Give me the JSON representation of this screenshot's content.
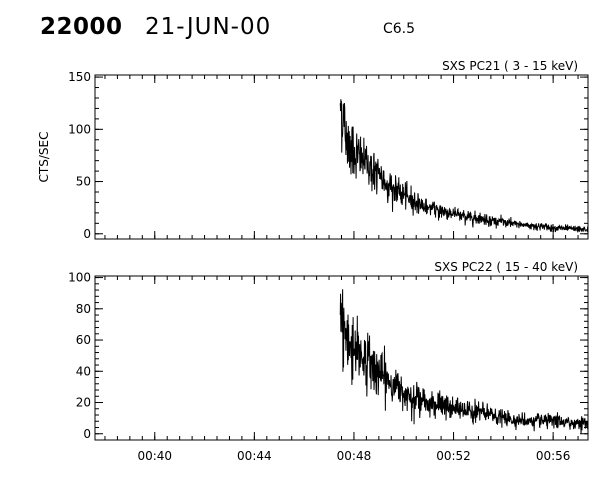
{
  "header": {
    "event_id": "22000",
    "date": "21-JUN-00",
    "flare_class": "C6.5"
  },
  "chart_data": [
    {
      "type": "line",
      "title": "SXS PC21  (  3 - 15 keV)",
      "ylabel": "CTS/SEC",
      "xlabel": "",
      "x_unit": "UT time (minutes after 00:00)",
      "xlim": [
        37.6,
        57.4
      ],
      "ylim": [
        -5,
        152
      ],
      "yticks": [
        0,
        50,
        100,
        150
      ],
      "xticks": [
        40,
        44,
        48,
        52,
        56
      ],
      "xtick_labels": [],
      "grid": false,
      "series": [
        {
          "color": "#000000",
          "flare_start": 47.45,
          "peak_value": 125,
          "decay_points": [
            [
              47.45,
              125
            ],
            [
              47.7,
              92
            ],
            [
              48.0,
              78
            ],
            [
              48.5,
              67
            ],
            [
              49.0,
              55
            ],
            [
              49.5,
              44
            ],
            [
              50.0,
              37
            ],
            [
              50.5,
              30
            ],
            [
              51.0,
              25
            ],
            [
              51.5,
              22
            ],
            [
              52.0,
              19
            ],
            [
              52.5,
              16
            ],
            [
              53.0,
              15
            ],
            [
              53.5,
              13
            ],
            [
              54.0,
              11
            ],
            [
              54.5,
              9
            ],
            [
              55.0,
              8
            ],
            [
              55.5,
              7
            ],
            [
              56.0,
              6
            ],
            [
              56.5,
              5
            ],
            [
              57.4,
              4
            ]
          ],
          "noise_amplitude": 0.16
        }
      ]
    },
    {
      "type": "line",
      "title": "SXS PC22  ( 15 - 40 keV)",
      "ylabel": "",
      "xlabel": "",
      "x_unit": "UT time (minutes after 00:00)",
      "xlim": [
        37.6,
        57.4
      ],
      "ylim": [
        -4,
        101
      ],
      "yticks": [
        0,
        20,
        40,
        60,
        80,
        100
      ],
      "xticks": [
        40,
        44,
        48,
        52,
        56
      ],
      "xtick_labels": [
        "00:40",
        "00:44",
        "00:48",
        "00:52",
        "00:56"
      ],
      "grid": false,
      "series": [
        {
          "color": "#000000",
          "flare_start": 47.45,
          "peak_value": 76,
          "decay_points": [
            [
              47.45,
              76
            ],
            [
              47.7,
              60
            ],
            [
              48.0,
              55
            ],
            [
              48.5,
              47
            ],
            [
              49.0,
              39
            ],
            [
              49.5,
              32
            ],
            [
              50.0,
              27
            ],
            [
              50.5,
              23
            ],
            [
              51.0,
              20
            ],
            [
              51.5,
              18
            ],
            [
              52.0,
              16
            ],
            [
              52.5,
              15
            ],
            [
              53.0,
              14
            ],
            [
              53.5,
              12
            ],
            [
              54.0,
              10
            ],
            [
              54.5,
              9
            ],
            [
              55.0,
              8
            ],
            [
              55.5,
              8
            ],
            [
              56.0,
              8
            ],
            [
              56.5,
              7
            ],
            [
              57.4,
              7
            ]
          ],
          "noise_amplitude": 0.2
        }
      ]
    }
  ]
}
